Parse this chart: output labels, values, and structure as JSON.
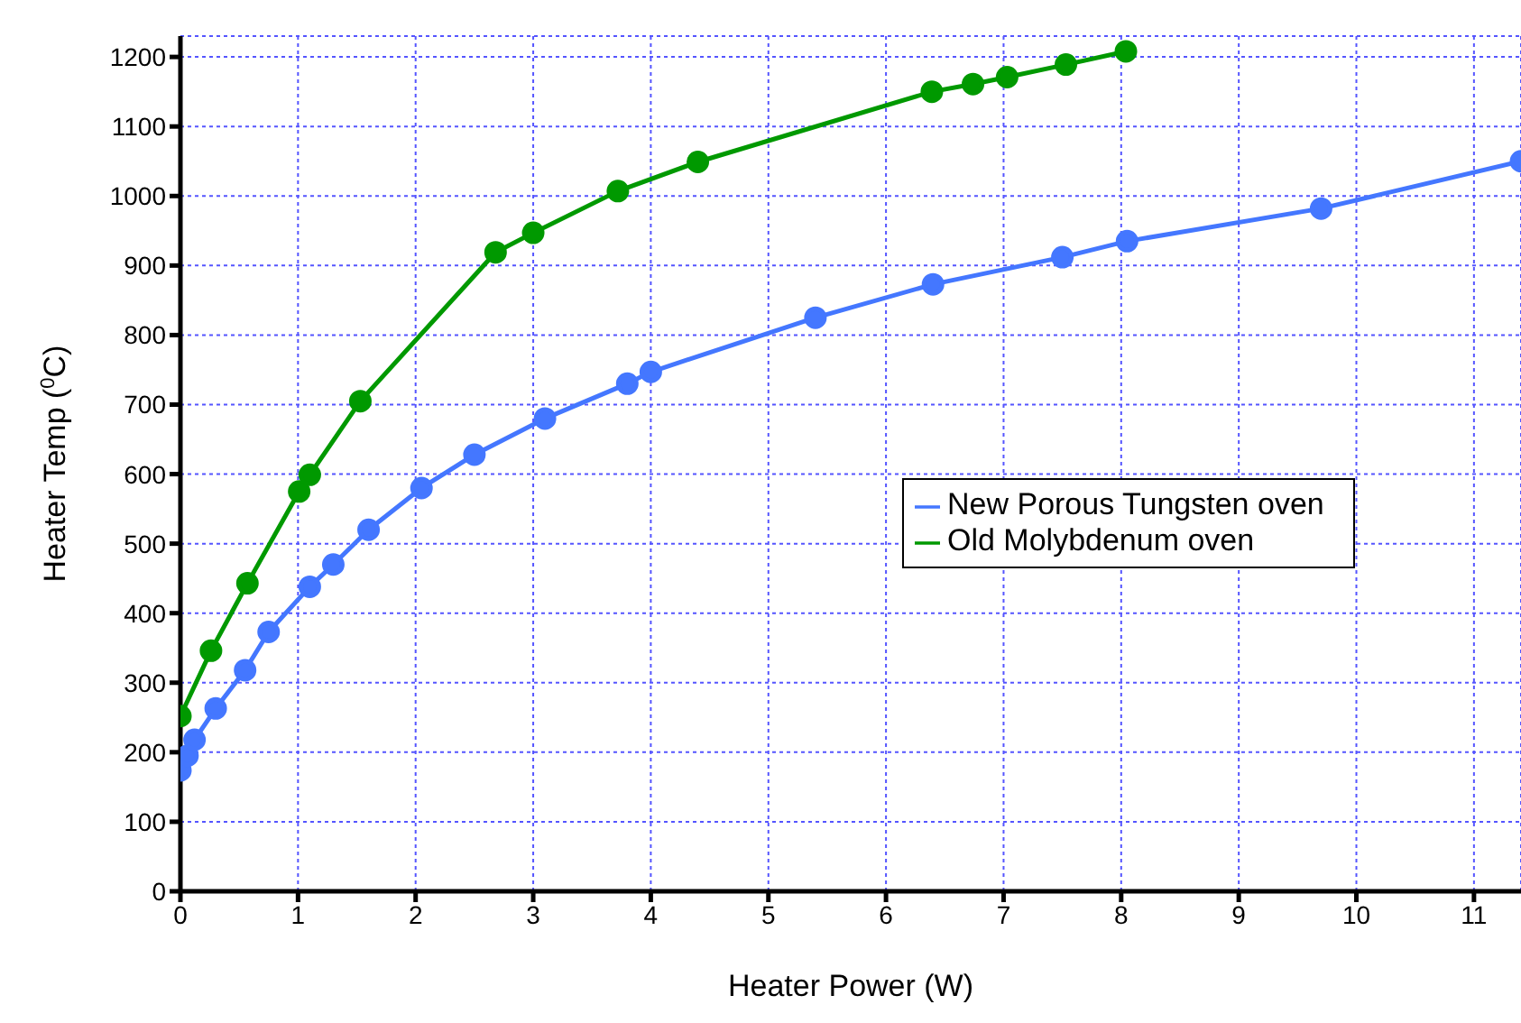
{
  "chart_data": {
    "type": "line",
    "xlabel": "Heater Power (W)",
    "ylabel": "Heater Temp ($^{0}$C)",
    "xlim": [
      0,
      11.4
    ],
    "xticks": [
      0,
      1,
      2,
      3,
      4,
      5,
      6,
      7,
      8,
      9,
      10,
      11
    ],
    "ylim": [
      0,
      1230
    ],
    "yticks": [
      0,
      100,
      200,
      300,
      400,
      500,
      600,
      700,
      800,
      900,
      1000,
      1100,
      1200
    ],
    "grid": true,
    "legend": "right",
    "marker": "circle",
    "line_style": "solid",
    "series": [
      {
        "name": "New Porous Tungsten oven",
        "color": "#4477ff",
        "x": [
          0,
          0.06,
          0.12,
          0.3,
          0.55,
          0.75,
          1.1,
          1.3,
          1.6,
          2.05,
          2.5,
          3.1,
          3.8,
          4.0,
          5.4,
          6.4,
          7.5,
          8.05,
          9.7,
          11.4
        ],
        "values": [
          174,
          195,
          218,
          263,
          318,
          373,
          438,
          470,
          520,
          580,
          628,
          680,
          730,
          747,
          825,
          873,
          912,
          935,
          982,
          1050
        ]
      },
      {
        "name": "Old Molybdenum oven",
        "color": "#009900",
        "x": [
          0,
          0.26,
          0.57,
          1.01,
          1.1,
          1.53,
          2.68,
          3.0,
          3.72,
          4.4,
          6.39,
          6.74,
          7.03,
          7.53,
          8.04
        ],
        "values": [
          252,
          346,
          443,
          575,
          599,
          705,
          919,
          947,
          1007,
          1049,
          1150,
          1161,
          1171,
          1189,
          1208
        ]
      }
    ]
  }
}
